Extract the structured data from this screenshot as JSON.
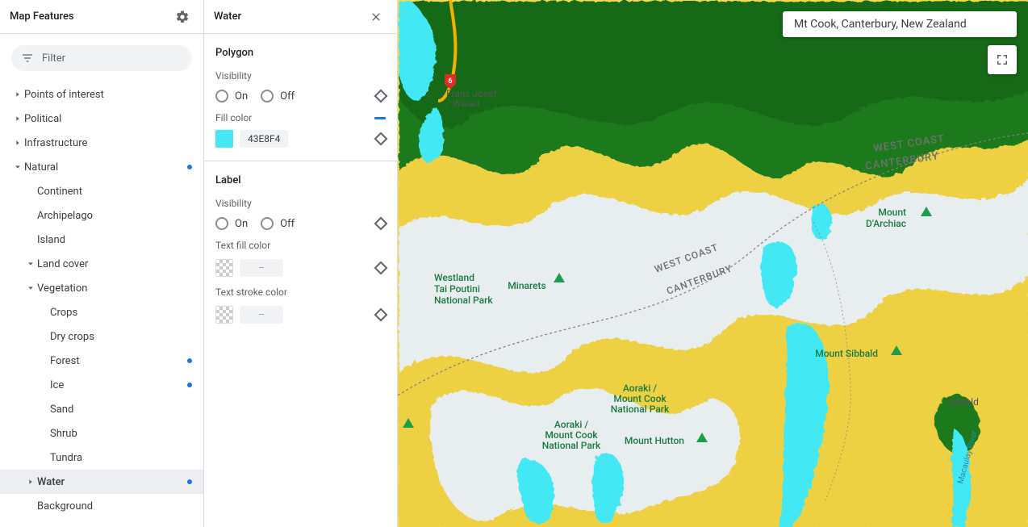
{
  "left": {
    "title": "Map Features",
    "filter_placeholder": "Filter",
    "tree": [
      {
        "label": "Points of interest",
        "depth": 0,
        "arrow": "right",
        "dot": false
      },
      {
        "label": "Political",
        "depth": 0,
        "arrow": "right",
        "dot": false
      },
      {
        "label": "Infrastructure",
        "depth": 0,
        "arrow": "right",
        "dot": false
      },
      {
        "label": "Natural",
        "depth": 0,
        "arrow": "down",
        "dot": true
      },
      {
        "label": "Continent",
        "depth": 1,
        "arrow": "",
        "dot": false
      },
      {
        "label": "Archipelago",
        "depth": 1,
        "arrow": "",
        "dot": false
      },
      {
        "label": "Island",
        "depth": 1,
        "arrow": "",
        "dot": false
      },
      {
        "label": "Land cover",
        "depth": 1,
        "arrow": "down",
        "dot": false
      },
      {
        "label": "Vegetation",
        "depth": 2,
        "arrow": "down",
        "dot": false
      },
      {
        "label": "Crops",
        "depth": 3,
        "arrow": "",
        "dot": false
      },
      {
        "label": "Dry crops",
        "depth": 3,
        "arrow": "",
        "dot": false
      },
      {
        "label": "Forest",
        "depth": 3,
        "arrow": "",
        "dot": true
      },
      {
        "label": "Ice",
        "depth": 3,
        "arrow": "",
        "dot": true
      },
      {
        "label": "Sand",
        "depth": 3,
        "arrow": "",
        "dot": false
      },
      {
        "label": "Shrub",
        "depth": 3,
        "arrow": "",
        "dot": false
      },
      {
        "label": "Tundra",
        "depth": 3,
        "arrow": "",
        "dot": false
      },
      {
        "label": "Water",
        "depth": 1,
        "arrow": "right",
        "dot": true,
        "selected": true
      },
      {
        "label": "Background",
        "depth": 1,
        "arrow": "",
        "dot": false
      }
    ]
  },
  "mid": {
    "title": "Water",
    "polygon": {
      "heading": "Polygon",
      "visibility_label": "Visibility",
      "on": "On",
      "off": "Off",
      "fill_label": "Fill color",
      "fill_hex": "43E8F4",
      "fill_swatch": "#43e8f4"
    },
    "label": {
      "heading": "Label",
      "visibility_label": "Visibility",
      "on": "On",
      "off": "Off",
      "textfill_label": "Text fill color",
      "textfill_hex": "–",
      "textstroke_label": "Text stroke color",
      "textstroke_hex": "–"
    }
  },
  "map": {
    "search": "Mt Cook, Canterbury, New Zealand",
    "colors": {
      "ice": "#e8edf0",
      "tundra": "#f5d94b",
      "tundra_dark": "#e0c535",
      "forest": "#1f7a1f",
      "forest_dark": "#155e15",
      "water": "#43e8f4",
      "road": "#f0b400",
      "shield_red": "#d93025"
    },
    "labels": {
      "franz": "Franz Josef\n/ Waiau",
      "westland": "Westland\nTai Poutini\nNational Park",
      "minarets": "Minarets",
      "darchiac": "Mount\nD'Archiac",
      "aoraki1": "Aoraki /\nMount Cook\nNational Park",
      "aoraki2": "Aoraki /\nMount Cook\nNational Park",
      "hutton": "Mount Hutton",
      "sibbald_m": "Mount Sibbald",
      "sibbald": "Sibbald",
      "westcoast": "WEST COAST",
      "canterbury": "CANTERBURY",
      "route": "6",
      "river": "Macaulay River"
    }
  }
}
